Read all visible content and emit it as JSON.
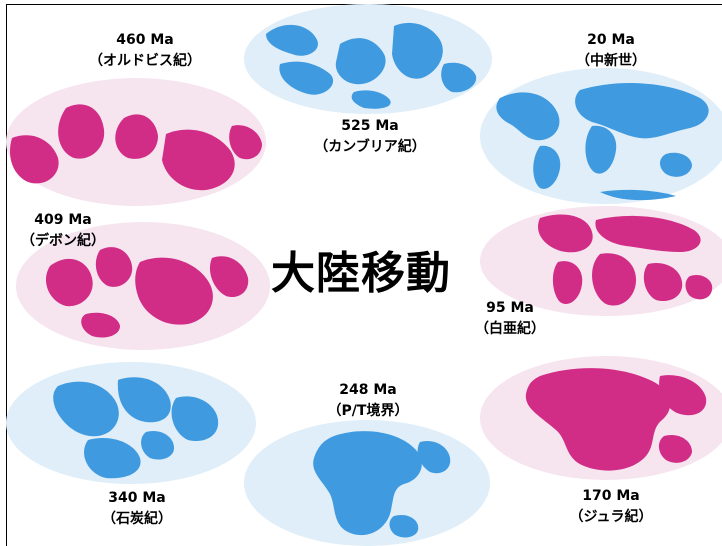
{
  "title": "大陸移動",
  "colors": {
    "ocean_blue": "#dfeef8",
    "land_blue": "#3f9ae0",
    "ocean_pink": "#f6e4ef",
    "land_pink": "#d12c86"
  },
  "maps": [
    {
      "id": "m525",
      "age": "525 Ma",
      "period": "（カンブリア紀）",
      "theme": "blue"
    },
    {
      "id": "m460",
      "age": "460 Ma",
      "period": "（オルドビス紀）",
      "theme": "pink"
    },
    {
      "id": "m20",
      "age": "20 Ma",
      "period": "（中新世）",
      "theme": "blue"
    },
    {
      "id": "m409",
      "age": "409 Ma",
      "period": "（デボン紀）",
      "theme": "pink"
    },
    {
      "id": "m95",
      "age": "95 Ma",
      "period": "（白亜紀）",
      "theme": "pink"
    },
    {
      "id": "m340",
      "age": "340 Ma",
      "period": "（石炭紀）",
      "theme": "blue"
    },
    {
      "id": "m248",
      "age": "248 Ma",
      "period": "（P/T境界）",
      "theme": "blue"
    },
    {
      "id": "m170",
      "age": "170 Ma",
      "period": "（ジュラ紀）",
      "theme": "pink"
    }
  ]
}
